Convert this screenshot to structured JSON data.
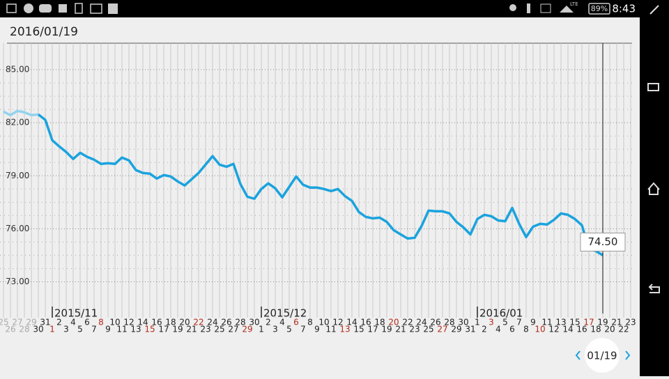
{
  "status_bar": {
    "battery": "89%",
    "time": "8:43",
    "network": "LTE"
  },
  "header": {
    "date": "2016/01/19"
  },
  "chart_data": {
    "type": "line",
    "categories": [
      "25",
      "26",
      "27",
      "28",
      "29",
      "30",
      "31",
      "1",
      "2",
      "3",
      "4",
      "5",
      "6",
      "7",
      "8",
      "9",
      "10",
      "11",
      "12",
      "13",
      "14",
      "15",
      "16",
      "17",
      "18",
      "19",
      "20",
      "21",
      "22",
      "23",
      "24",
      "25",
      "26",
      "27",
      "28",
      "29",
      "30",
      "1",
      "2",
      "3",
      "4",
      "5",
      "6",
      "7",
      "8",
      "9",
      "10",
      "11",
      "12",
      "13",
      "14",
      "15",
      "16",
      "17",
      "18",
      "19",
      "20",
      "21",
      "22",
      "23",
      "24",
      "25",
      "26",
      "27",
      "28",
      "29",
      "30",
      "31",
      "1",
      "2",
      "3",
      "4",
      "5",
      "6",
      "7",
      "8",
      "9",
      "10",
      "11",
      "12",
      "13",
      "14",
      "15",
      "16",
      "17",
      "18",
      "19",
      "20",
      "21",
      "22",
      "23"
    ],
    "month_labels": [
      {
        "label": "2015/11",
        "index": 7
      },
      {
        "label": "2015/12",
        "index": 37
      },
      {
        "label": "2016/01",
        "index": 68
      }
    ],
    "series": [
      {
        "color": "#93d2ef",
        "values": [
          82.63,
          82.43,
          82.67,
          82.59,
          82.43,
          82.47,
          null,
          null,
          null,
          null,
          null,
          null,
          null,
          null,
          null,
          null,
          null,
          null,
          null,
          null,
          null,
          null,
          null,
          null,
          null,
          null,
          null,
          null,
          null,
          null,
          null,
          null,
          null,
          null,
          null,
          null,
          null,
          null,
          null,
          null,
          null,
          null,
          null,
          null,
          null,
          null,
          null,
          null,
          null,
          null,
          null,
          null,
          null,
          null,
          null,
          null,
          null,
          null,
          null,
          null,
          null,
          null,
          null,
          null,
          null,
          null,
          null,
          null,
          null,
          null,
          null,
          null,
          null,
          null,
          null,
          null,
          null,
          null,
          null,
          null,
          null,
          null,
          null,
          null,
          null,
          null,
          null,
          null,
          null,
          null,
          null
        ]
      },
      {
        "color": "#1aa3de",
        "values": [
          null,
          null,
          null,
          null,
          null,
          82.47,
          82.16,
          81.01,
          80.66,
          80.34,
          79.95,
          80.3,
          80.07,
          79.91,
          79.67,
          79.71,
          79.67,
          80.03,
          79.87,
          79.32,
          79.16,
          79.12,
          78.84,
          79.04,
          78.96,
          78.68,
          78.45,
          78.8,
          79.16,
          79.63,
          80.11,
          79.63,
          79.51,
          79.67,
          78.53,
          77.81,
          77.7,
          78.25,
          78.57,
          78.29,
          77.78,
          78.37,
          78.96,
          78.49,
          78.33,
          78.33,
          78.25,
          78.13,
          78.25,
          77.85,
          77.58,
          76.95,
          76.67,
          76.59,
          76.63,
          76.39,
          75.92,
          75.68,
          75.45,
          75.49,
          76.16,
          77.03,
          76.99,
          76.99,
          76.87,
          76.39,
          76.08,
          75.68,
          76.55,
          76.79,
          76.71,
          76.47,
          76.43,
          77.18,
          76.28,
          75.53,
          76.12,
          76.28,
          76.24,
          76.51,
          76.87,
          76.79,
          76.55,
          76.2,
          74.89,
          74.74,
          74.5,
          null,
          null,
          null,
          null
        ]
      }
    ],
    "cursor": {
      "index": 86,
      "label": "74.50"
    },
    "ylim": [
      71.6,
      86.5
    ],
    "yticks": [
      {
        "value": 73,
        "label": "73.00"
      },
      {
        "value": 76,
        "label": "76.00"
      },
      {
        "value": 79,
        "label": "79.00"
      },
      {
        "value": 82,
        "label": "82.00"
      },
      {
        "value": 85,
        "label": "85.00"
      }
    ],
    "minor_yticks": [
      73.75,
      74.5,
      75.25,
      76.75,
      77.5,
      78.25,
      79.75,
      80.5,
      81.25,
      82.75,
      83.5,
      84.25
    ],
    "grid": true,
    "holiday_color": "#b22a1a"
  },
  "footer": {
    "current": "01/19"
  }
}
